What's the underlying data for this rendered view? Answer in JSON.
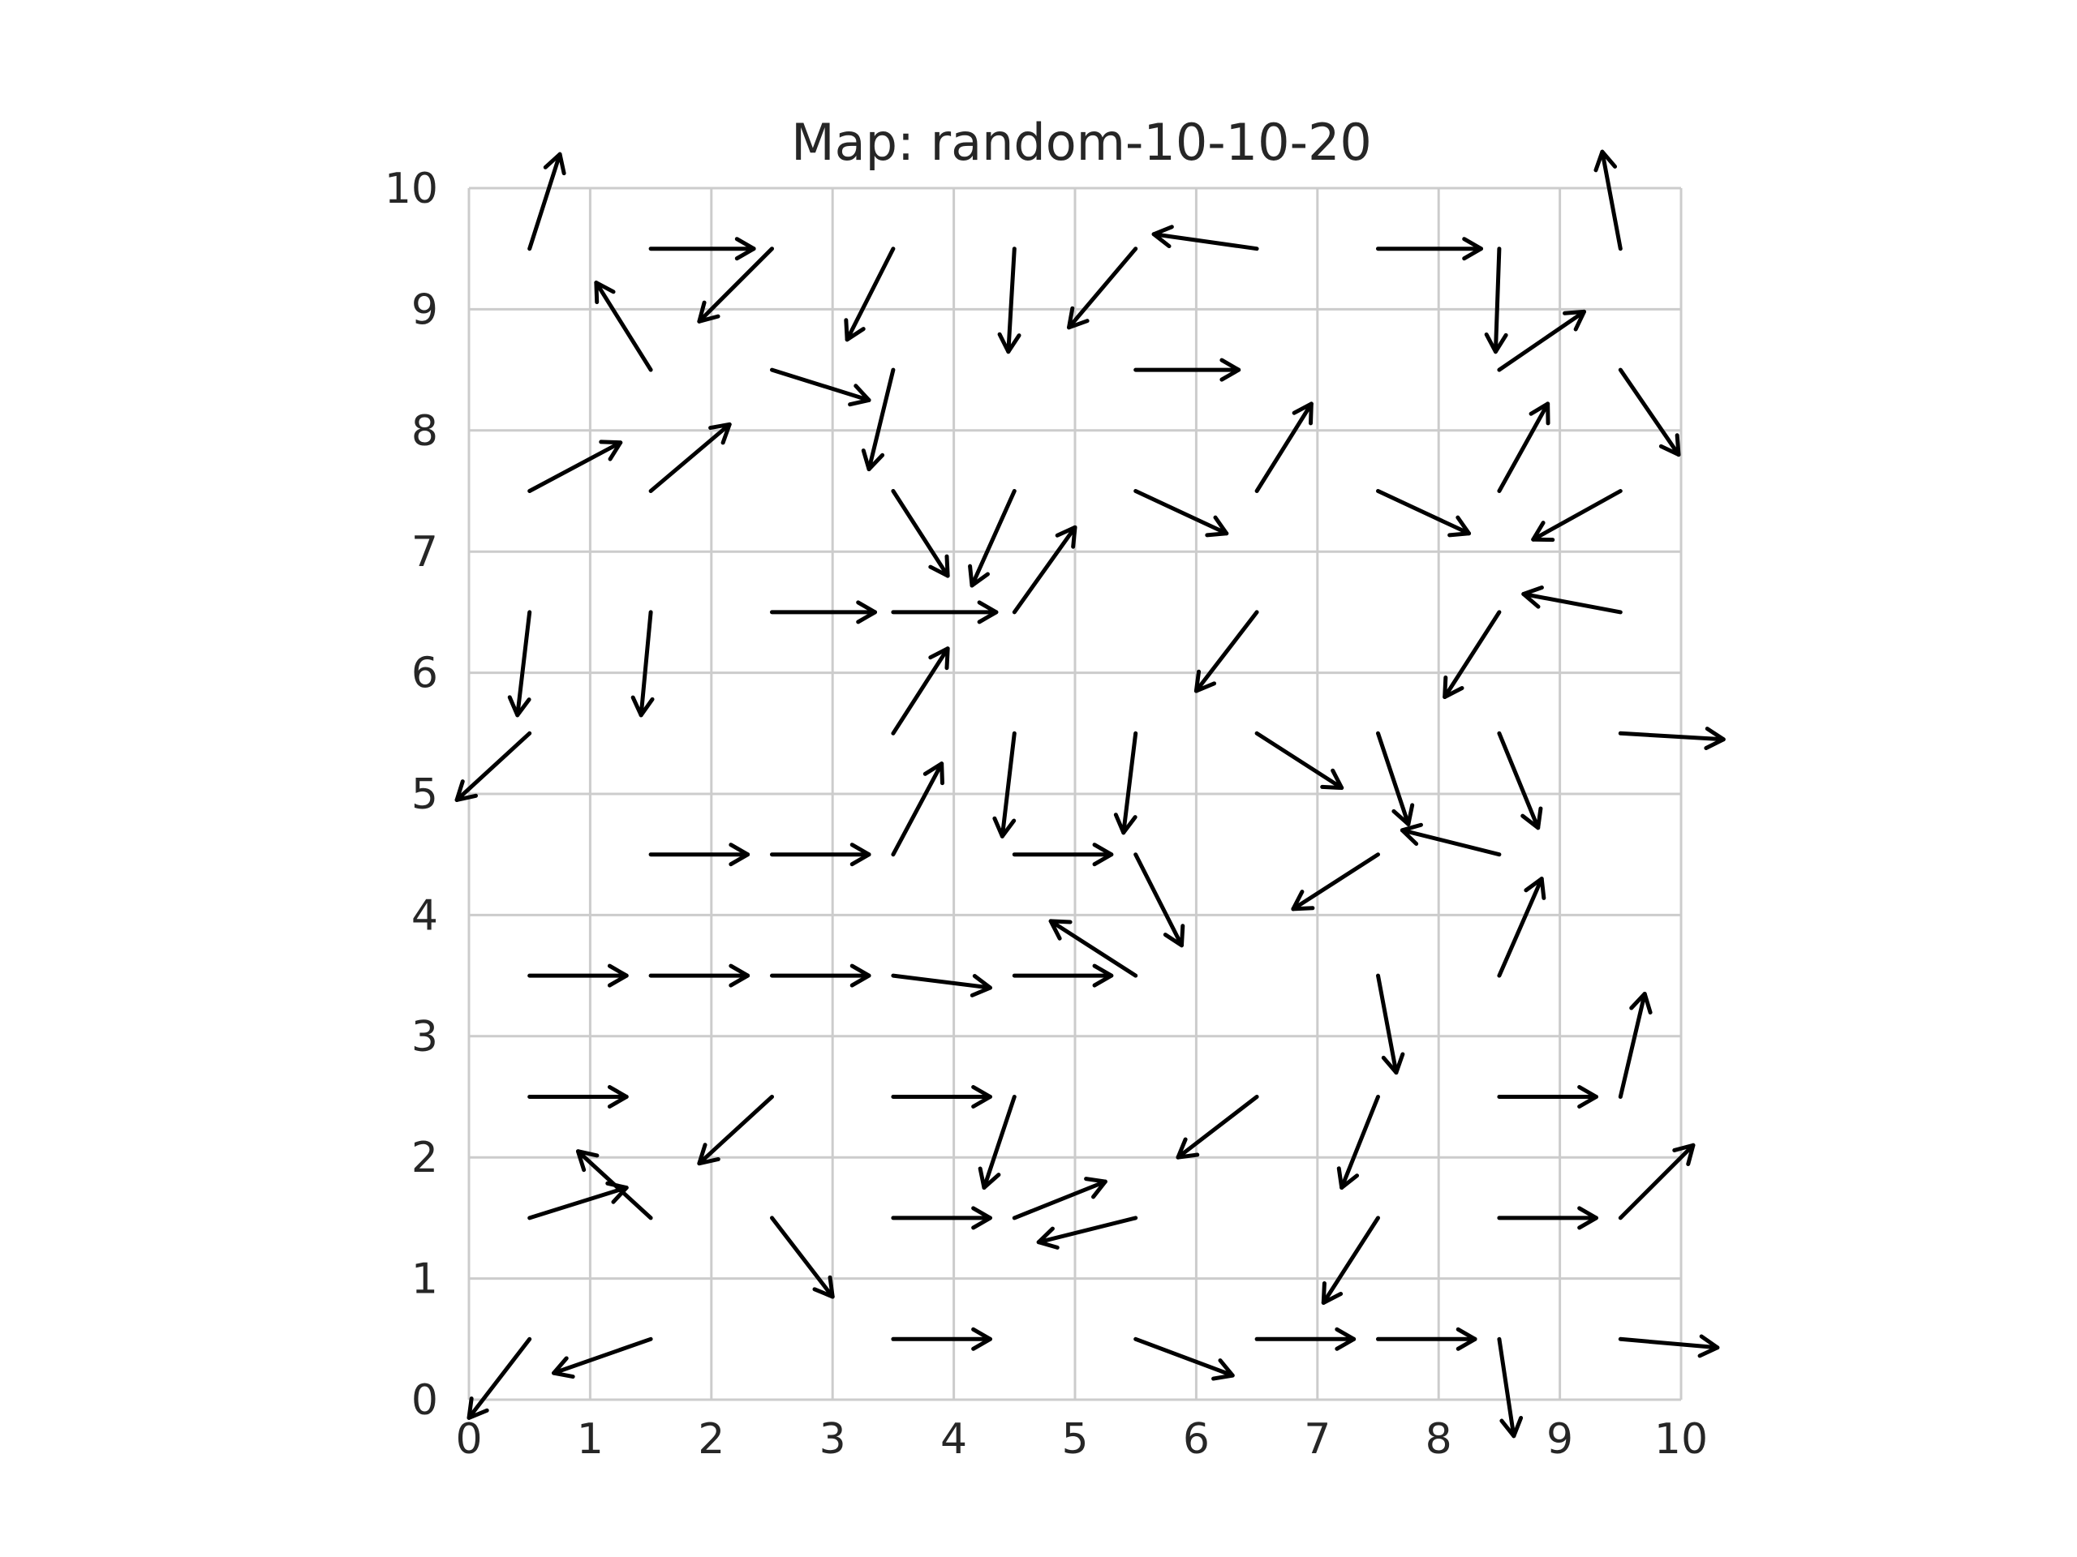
{
  "chart_data": {
    "type": "quiver",
    "title": "Map: random-10-10-20",
    "xlabel": "",
    "ylabel": "",
    "xlim": [
      0,
      10
    ],
    "ylim": [
      0,
      10
    ],
    "xticks": [
      "0",
      "1",
      "2",
      "3",
      "4",
      "5",
      "6",
      "7",
      "8",
      "9",
      "10"
    ],
    "yticks": [
      "0",
      "1",
      "2",
      "3",
      "4",
      "5",
      "6",
      "7",
      "8",
      "9",
      "10"
    ],
    "grid": true,
    "arrow_color": "#000000",
    "grid_color": "#cccccc",
    "vectors": [
      {
        "x": 0.5,
        "y": 0.5,
        "u": -0.5,
        "v": -0.65
      },
      {
        "x": 1.5,
        "y": 0.5,
        "u": -0.8,
        "v": -0.28
      },
      {
        "x": 3.5,
        "y": 0.5,
        "u": 0.8,
        "v": 0.0
      },
      {
        "x": 5.5,
        "y": 0.5,
        "u": 0.8,
        "v": -0.3
      },
      {
        "x": 6.5,
        "y": 0.5,
        "u": 0.8,
        "v": 0.0
      },
      {
        "x": 7.5,
        "y": 0.5,
        "u": 0.8,
        "v": 0.0
      },
      {
        "x": 8.5,
        "y": 0.5,
        "u": 0.12,
        "v": -0.8
      },
      {
        "x": 9.5,
        "y": 0.5,
        "u": 0.8,
        "v": -0.07
      },
      {
        "x": 0.5,
        "y": 1.5,
        "u": 0.8,
        "v": 0.25
      },
      {
        "x": 1.5,
        "y": 1.5,
        "u": -0.6,
        "v": 0.55
      },
      {
        "x": 2.5,
        "y": 1.5,
        "u": 0.5,
        "v": -0.65
      },
      {
        "x": 3.5,
        "y": 1.5,
        "u": 0.8,
        "v": 0.0
      },
      {
        "x": 4.5,
        "y": 1.5,
        "u": 0.75,
        "v": 0.3
      },
      {
        "x": 5.5,
        "y": 1.5,
        "u": -0.8,
        "v": -0.2
      },
      {
        "x": 7.5,
        "y": 1.5,
        "u": -0.45,
        "v": -0.7
      },
      {
        "x": 8.5,
        "y": 1.5,
        "u": 0.8,
        "v": 0.0
      },
      {
        "x": 9.5,
        "y": 1.5,
        "u": 0.6,
        "v": 0.6
      },
      {
        "x": 0.5,
        "y": 2.5,
        "u": 0.8,
        "v": 0.0
      },
      {
        "x": 2.5,
        "y": 2.5,
        "u": -0.6,
        "v": -0.55
      },
      {
        "x": 3.5,
        "y": 2.5,
        "u": 0.8,
        "v": 0.0
      },
      {
        "x": 4.5,
        "y": 2.5,
        "u": -0.25,
        "v": -0.75
      },
      {
        "x": 6.5,
        "y": 2.5,
        "u": -0.65,
        "v": -0.5
      },
      {
        "x": 7.5,
        "y": 2.5,
        "u": -0.3,
        "v": -0.75
      },
      {
        "x": 8.5,
        "y": 2.5,
        "u": 0.8,
        "v": 0.0
      },
      {
        "x": 0.5,
        "y": 3.5,
        "u": 0.8,
        "v": 0.0
      },
      {
        "x": 1.5,
        "y": 3.5,
        "u": 0.8,
        "v": 0.0
      },
      {
        "x": 2.5,
        "y": 3.5,
        "u": 0.8,
        "v": 0.0
      },
      {
        "x": 3.5,
        "y": 3.5,
        "u": 0.8,
        "v": -0.1
      },
      {
        "x": 4.5,
        "y": 3.5,
        "u": 0.8,
        "v": 0.0
      },
      {
        "x": 5.5,
        "y": 3.5,
        "u": -0.7,
        "v": 0.45
      },
      {
        "x": 7.5,
        "y": 3.5,
        "u": 0.15,
        "v": -0.8
      },
      {
        "x": 8.5,
        "y": 3.5,
        "u": 0.35,
        "v": 0.8
      },
      {
        "x": 9.5,
        "y": 2.5,
        "u": 0.2,
        "v": 0.85
      },
      {
        "x": 1.5,
        "y": 4.5,
        "u": 0.8,
        "v": 0.0
      },
      {
        "x": 2.5,
        "y": 4.5,
        "u": 0.8,
        "v": 0.0
      },
      {
        "x": 3.5,
        "y": 4.5,
        "u": 0.4,
        "v": 0.75
      },
      {
        "x": 4.5,
        "y": 4.5,
        "u": 0.8,
        "v": 0.0
      },
      {
        "x": 5.5,
        "y": 4.5,
        "u": 0.38,
        "v": -0.75
      },
      {
        "x": 7.5,
        "y": 4.5,
        "u": -0.7,
        "v": -0.45
      },
      {
        "x": 8.5,
        "y": 4.5,
        "u": -0.8,
        "v": 0.2
      },
      {
        "x": 0.5,
        "y": 5.5,
        "u": -0.6,
        "v": -0.55
      },
      {
        "x": 5.5,
        "y": 5.5,
        "u": -0.1,
        "v": -0.82
      },
      {
        "x": 6.5,
        "y": 5.5,
        "u": 0.7,
        "v": -0.45
      },
      {
        "x": 7.5,
        "y": 5.5,
        "u": 0.25,
        "v": -0.75
      },
      {
        "x": 8.5,
        "y": 5.5,
        "u": 0.32,
        "v": -0.78
      },
      {
        "x": 9.5,
        "y": 5.5,
        "u": 0.85,
        "v": -0.05
      },
      {
        "x": 0.5,
        "y": 6.5,
        "u": -0.1,
        "v": -0.85
      },
      {
        "x": 1.5,
        "y": 6.5,
        "u": -0.08,
        "v": -0.85
      },
      {
        "x": 2.5,
        "y": 6.5,
        "u": 0.85,
        "v": 0.0
      },
      {
        "x": 3.5,
        "y": 6.5,
        "u": 0.85,
        "v": 0.0
      },
      {
        "x": 3.5,
        "y": 5.5,
        "u": 0.45,
        "v": 0.7
      },
      {
        "x": 4.5,
        "y": 5.5,
        "u": -0.1,
        "v": -0.85
      },
      {
        "x": 4.5,
        "y": 6.5,
        "u": 0.5,
        "v": 0.7
      },
      {
        "x": 6.5,
        "y": 6.5,
        "u": -0.5,
        "v": -0.65
      },
      {
        "x": 8.5,
        "y": 6.5,
        "u": -0.45,
        "v": -0.7
      },
      {
        "x": 9.5,
        "y": 6.5,
        "u": -0.8,
        "v": 0.15
      },
      {
        "x": 0.5,
        "y": 7.5,
        "u": 0.75,
        "v": 0.4
      },
      {
        "x": 1.5,
        "y": 7.5,
        "u": 0.65,
        "v": 0.55
      },
      {
        "x": 3.5,
        "y": 7.5,
        "u": 0.45,
        "v": -0.7
      },
      {
        "x": 4.5,
        "y": 7.5,
        "u": -0.35,
        "v": -0.78
      },
      {
        "x": 5.5,
        "y": 7.5,
        "u": 0.75,
        "v": -0.35
      },
      {
        "x": 6.5,
        "y": 7.5,
        "u": 0.45,
        "v": 0.72
      },
      {
        "x": 7.5,
        "y": 7.5,
        "u": 0.75,
        "v": -0.35
      },
      {
        "x": 8.5,
        "y": 7.5,
        "u": 0.4,
        "v": 0.72
      },
      {
        "x": 9.5,
        "y": 7.5,
        "u": -0.72,
        "v": -0.4
      },
      {
        "x": 1.5,
        "y": 8.5,
        "u": -0.45,
        "v": 0.72
      },
      {
        "x": 2.5,
        "y": 8.5,
        "u": 0.8,
        "v": -0.25
      },
      {
        "x": 3.5,
        "y": 8.5,
        "u": -0.2,
        "v": -0.82
      },
      {
        "x": 5.5,
        "y": 8.5,
        "u": 0.85,
        "v": 0.0
      },
      {
        "x": 8.5,
        "y": 8.5,
        "u": 0.7,
        "v": 0.48
      },
      {
        "x": 9.5,
        "y": 8.5,
        "u": 0.48,
        "v": -0.7
      },
      {
        "x": 0.5,
        "y": 9.5,
        "u": 0.25,
        "v": 0.78
      },
      {
        "x": 1.5,
        "y": 9.5,
        "u": 0.85,
        "v": 0.0
      },
      {
        "x": 2.5,
        "y": 9.5,
        "u": -0.6,
        "v": -0.6
      },
      {
        "x": 3.5,
        "y": 9.5,
        "u": -0.38,
        "v": -0.75
      },
      {
        "x": 4.5,
        "y": 9.5,
        "u": -0.05,
        "v": -0.85
      },
      {
        "x": 5.5,
        "y": 9.5,
        "u": -0.55,
        "v": -0.65
      },
      {
        "x": 6.5,
        "y": 9.5,
        "u": -0.85,
        "v": 0.12
      },
      {
        "x": 7.5,
        "y": 9.5,
        "u": 0.85,
        "v": 0.0
      },
      {
        "x": 8.5,
        "y": 9.5,
        "u": -0.03,
        "v": -0.85
      },
      {
        "x": 9.5,
        "y": 9.5,
        "u": -0.15,
        "v": 0.8
      }
    ]
  }
}
